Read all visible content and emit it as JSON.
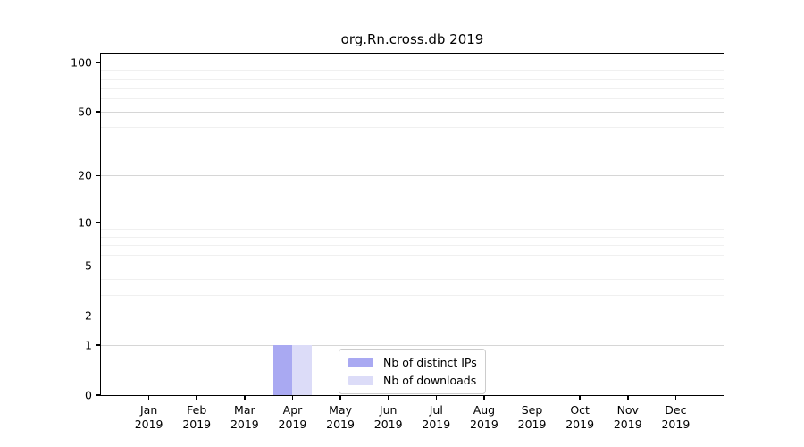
{
  "figure": {
    "title": "org.Rn.cross.db 2019"
  },
  "chart_data": {
    "type": "bar",
    "title": "org.Rn.cross.db 2019",
    "categories": [
      "Jan",
      "Feb",
      "Mar",
      "Apr",
      "May",
      "Jun",
      "Jul",
      "Aug",
      "Sep",
      "Oct",
      "Nov",
      "Dec"
    ],
    "category_year": "2019",
    "series": [
      {
        "name": "Nb of distinct IPs",
        "color": "#a9a9f2",
        "values": [
          0,
          0,
          0,
          1,
          0,
          0,
          0,
          0,
          0,
          0,
          0,
          0
        ]
      },
      {
        "name": "Nb of downloads",
        "color": "#dcdcf8",
        "values": [
          0,
          0,
          0,
          1,
          0,
          0,
          0,
          0,
          0,
          0,
          0,
          0
        ]
      }
    ],
    "xlabel": "",
    "ylabel": "",
    "yaxis": {
      "scale": "log1p",
      "ticks": [
        100,
        50,
        20,
        10,
        5,
        2,
        1,
        0
      ],
      "minor_ticks": [
        3,
        4,
        6,
        7,
        8,
        9,
        30,
        40,
        60,
        70,
        80,
        90
      ],
      "ylim": [
        0,
        113
      ]
    },
    "legend": {
      "position": "lower center",
      "entries": [
        "Nb of distinct IPs",
        "Nb of downloads"
      ]
    },
    "grid": "horizontal-only"
  },
  "colors": {
    "background": "#ffffff",
    "axis_frame": "#000000",
    "major_grid": "#d6d6d6",
    "minor_grid": "#f0f0f0",
    "legend_border": "#cccccc",
    "bar_distinct_ips": "#a9a9f2",
    "bar_downloads": "#dcdcf8"
  }
}
